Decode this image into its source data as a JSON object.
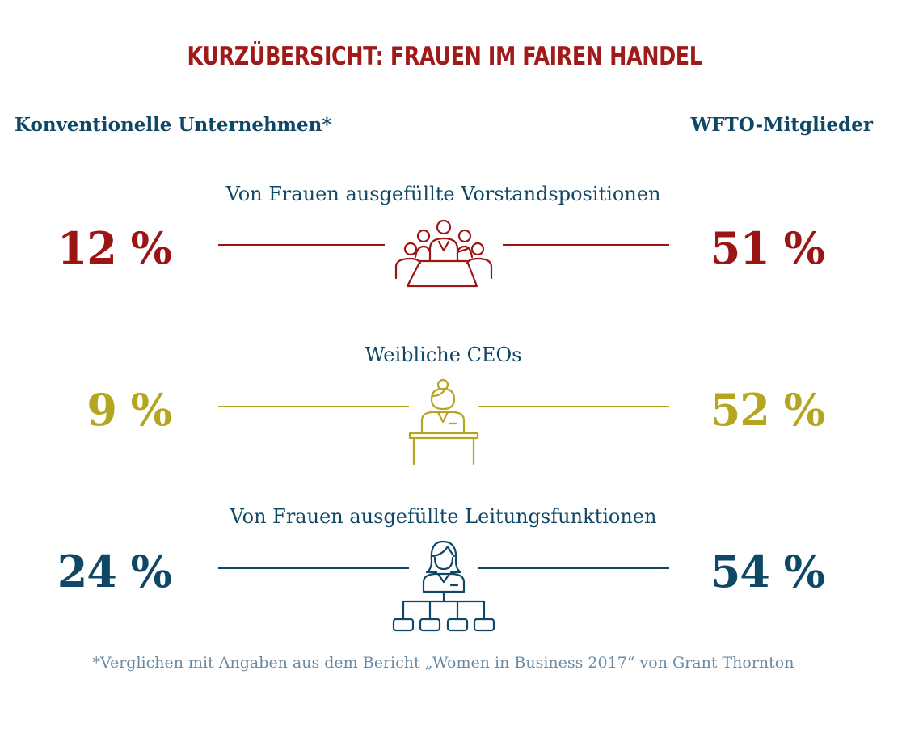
{
  "title": "Kurzübersicht: Frauen im fairen Handel",
  "columns": {
    "left": "Konventionelle Unternehmen*",
    "right": "WFTO-Mitglieder"
  },
  "chart_data": {
    "type": "table",
    "title": "Kurzübersicht: Frauen im fairen Handel",
    "series": [
      {
        "name": "Konventionelle Unternehmen*",
        "values": [
          12,
          9,
          24
        ]
      },
      {
        "name": "WFTO-Mitglieder",
        "values": [
          51,
          52,
          54
        ]
      }
    ],
    "categories": [
      "Von Frauen ausgefüllte Vorstandspositionen",
      "Weibliche CEOs",
      "Von Frauen ausgefüllte Leitungsfunktionen"
    ]
  },
  "rows": [
    {
      "label": "Von Frauen ausgefüllte Vorstandspositionen",
      "left": "12 %",
      "right": "51 %",
      "color": "#9b1515",
      "icon": "boardroom-icon"
    },
    {
      "label": "Weibliche CEOs",
      "left": "9 %",
      "right": "52 %",
      "color": "#b5a520",
      "icon": "ceo-desk-icon"
    },
    {
      "label": "Von Frauen ausgefüllte Leitungsfunktionen",
      "left": "24 %",
      "right": "54 %",
      "color": "#0f4866",
      "icon": "org-chart-icon"
    }
  ],
  "footnote": "*Verglichen mit Angaben aus dem Bericht „Women in Business 2017“ von Grant Thornton"
}
